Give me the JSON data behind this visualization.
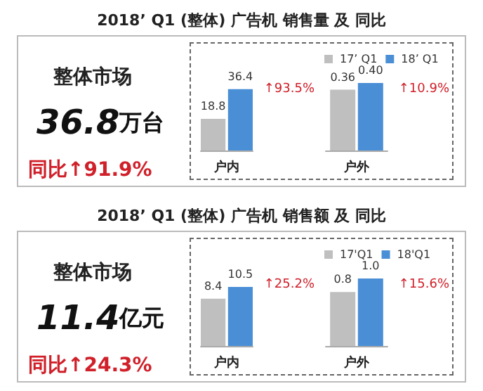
{
  "chart_data": [
    {
      "type": "other",
      "title": "2018’ Q1 (整体) 广告机 销售量 及 同比",
      "annotations": [
        "整体市场",
        "36.8万台",
        "同比↑91.9%"
      ]
    },
    {
      "type": "bar",
      "categories": [
        "户内"
      ],
      "series": [
        {
          "color": "#bfbfbf",
          "values": [
            18.8
          ],
          "value_labels": [
            "18.8"
          ]
        },
        {
          "color": "#4a8fd6",
          "values": [
            36.4
          ],
          "value_labels": [
            "36.4"
          ]
        }
      ],
      "tick_labels": "x",
      "legend": false,
      "annotations": [
        "↑93.5%"
      ]
    },
    {
      "type": "bar",
      "categories": [
        "户外"
      ],
      "series": [
        {
          "name": "17’ Q1",
          "color": "#bfbfbf",
          "values": [
            0.36
          ],
          "value_labels": [
            "0.36"
          ]
        },
        {
          "name": "18’ Q1",
          "color": "#4a8fd6",
          "values": [
            0.4
          ],
          "value_labels": [
            "0.40"
          ]
        }
      ],
      "tick_labels": "x",
      "legend": "top",
      "annotations": [
        "↑10.9%"
      ]
    },
    {
      "type": "other",
      "title": "2018’ Q1 (整体) 广告机 销售额 及 同比",
      "annotations": [
        "整体市场",
        "11.4亿元",
        "同比↑24.3%"
      ]
    },
    {
      "type": "bar",
      "categories": [
        "户内"
      ],
      "series": [
        {
          "color": "#bfbfbf",
          "values": [
            8.4
          ],
          "value_labels": [
            "8.4"
          ]
        },
        {
          "color": "#4a8fd6",
          "values": [
            10.5
          ],
          "value_labels": [
            "10.5"
          ]
        }
      ],
      "tick_labels": "x",
      "legend": false,
      "annotations": [
        "↑25.2%"
      ]
    },
    {
      "type": "bar",
      "categories": [
        "户外"
      ],
      "series": [
        {
          "name": "17'Q1",
          "color": "#bfbfbf",
          "values": [
            0.8
          ],
          "value_labels": [
            "0.8"
          ]
        },
        {
          "name": "18'Q1",
          "color": "#4a8fd6",
          "values": [
            1.0
          ],
          "value_labels": [
            "1.0"
          ]
        }
      ],
      "tick_labels": "x",
      "legend": "top",
      "annotations": [
        "↑15.6%"
      ]
    }
  ]
}
